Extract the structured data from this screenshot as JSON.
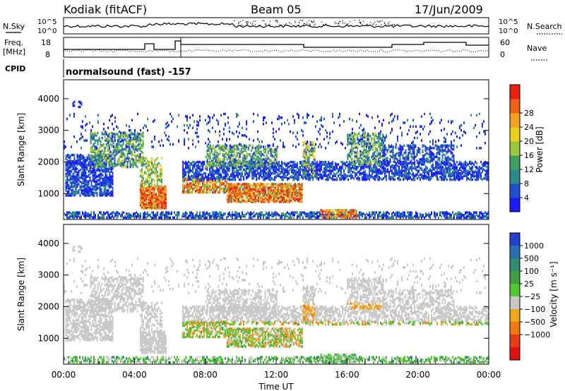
{
  "header": {
    "title": "Kodiak (fitACF)",
    "beam": "Beam 05",
    "date": "17/Jun/2009"
  },
  "noise_panel": {
    "left_label": "N.Sky",
    "right_label": "N.Search",
    "left_ticks": [
      "10^5",
      "10^0"
    ],
    "right_ticks": [
      "10^5",
      "10^0"
    ],
    "left_legend_style": "solid",
    "right_legend_style": "dotted"
  },
  "freq_panel": {
    "left_label_line1": "Freq.",
    "left_label_line2": "[MHz]",
    "right_label": "Nave",
    "left_ticks": [
      "18",
      "8"
    ],
    "right_ticks": [
      "60",
      "0"
    ],
    "right_legend_style": "dotted"
  },
  "cpid": {
    "label": "CPID",
    "text": "normalsound (fast) -157"
  },
  "x_axis": {
    "label": "Time UT",
    "ticks": [
      "00:00",
      "04:00",
      "08:00",
      "12:00",
      "16:00",
      "20:00",
      "00:00"
    ]
  },
  "chart_data": [
    {
      "type": "heatmap",
      "name": "power",
      "ylabel": "Slant Range [km]",
      "yticks": [
        "1000",
        "2000",
        "3000",
        "4000"
      ],
      "colorbar_label": "Power [dB]",
      "colorbar_ticks": [
        "4",
        "8",
        "12",
        "16",
        "20",
        "24",
        "28"
      ],
      "colorbar_colors": [
        "#1a1aff",
        "#2050d0",
        "#2a8a8a",
        "#40a060",
        "#9ac83a",
        "#e8d21e",
        "#f5a020",
        "#f06018",
        "#e82010"
      ],
      "x_hours": [
        0,
        24
      ],
      "y_km": [
        180,
        4600
      ]
    },
    {
      "type": "heatmap",
      "name": "velocity",
      "ylabel": "Slant Range [km]",
      "yticks": [
        "1000",
        "2000",
        "3000",
        "4000"
      ],
      "colorbar_label": "Velocity [m s⁻¹]",
      "colorbar_ticks": [
        "1000",
        "500",
        "100",
        "25",
        "−25",
        "−100",
        "−500",
        "−1000"
      ],
      "colorbar_colors": [
        "#2040d0",
        "#2a70b0",
        "#2e8a70",
        "#40a040",
        "#50c830",
        "#c8c8c8",
        "#f0a818",
        "#f07a10",
        "#e83a10",
        "#e01010"
      ],
      "x_hours": [
        0,
        24
      ],
      "y_km": [
        180,
        4600
      ]
    }
  ]
}
